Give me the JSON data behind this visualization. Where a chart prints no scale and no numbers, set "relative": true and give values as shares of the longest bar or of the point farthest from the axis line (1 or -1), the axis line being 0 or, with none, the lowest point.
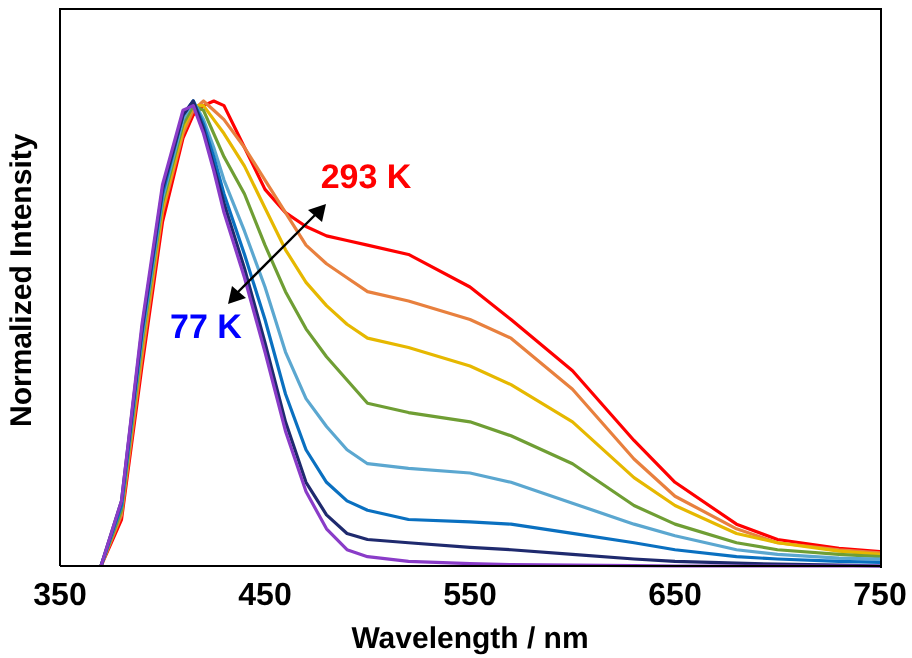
{
  "chart_data": {
    "type": "line",
    "relative": true,
    "xlabel": "Wavelength / nm",
    "ylabel": "Normalized Intensity",
    "xlim": [
      350,
      750
    ],
    "xticks": [
      350,
      450,
      550,
      650,
      750
    ],
    "marker": "none",
    "line_style": "solid",
    "annotations": [
      "293 K",
      "77 K"
    ],
    "x": [
      370,
      380,
      390,
      400,
      410,
      415,
      420,
      425,
      430,
      440,
      450,
      460,
      470,
      480,
      490,
      500,
      520,
      550,
      570,
      600,
      630,
      650,
      680,
      700,
      730,
      750
    ],
    "series": [
      {
        "color": "#ff0000",
        "values": [
          0,
          0.1,
          0.43,
          0.74,
          0.92,
          0.97,
          0.99,
          1,
          0.99,
          0.9,
          0.81,
          0.76,
          0.73,
          0.71,
          0.7,
          0.69,
          0.67,
          0.6,
          0.53,
          0.42,
          0.27,
          0.18,
          0.09,
          0.057,
          0.038,
          0.031
        ]
      },
      {
        "color": "#e8803e",
        "values": [
          0,
          0.11,
          0.45,
          0.76,
          0.93,
          0.98,
          1,
          0.98,
          0.96,
          0.9,
          0.83,
          0.76,
          0.69,
          0.65,
          0.62,
          0.59,
          0.57,
          0.53,
          0.49,
          0.38,
          0.23,
          0.15,
          0.08,
          0.05,
          0.035,
          0.028
        ]
      },
      {
        "color": "#e6b800",
        "values": [
          0,
          0.12,
          0.47,
          0.77,
          0.94,
          0.99,
          0.99,
          0.96,
          0.93,
          0.86,
          0.77,
          0.68,
          0.61,
          0.56,
          0.52,
          0.49,
          0.47,
          0.43,
          0.39,
          0.31,
          0.19,
          0.13,
          0.07,
          0.05,
          0.032,
          0.025
        ]
      },
      {
        "color": "#6f9e34",
        "values": [
          0,
          0.12,
          0.48,
          0.78,
          0.95,
          0.99,
          0.98,
          0.93,
          0.88,
          0.8,
          0.69,
          0.59,
          0.51,
          0.45,
          0.4,
          0.35,
          0.33,
          0.31,
          0.28,
          0.22,
          0.13,
          0.09,
          0.05,
          0.035,
          0.025,
          0.02
        ]
      },
      {
        "color": "#5ba7d0",
        "values": [
          0,
          0.13,
          0.49,
          0.79,
          0.96,
          1,
          0.96,
          0.9,
          0.83,
          0.72,
          0.6,
          0.46,
          0.36,
          0.3,
          0.25,
          0.22,
          0.21,
          0.2,
          0.18,
          0.135,
          0.09,
          0.065,
          0.035,
          0.025,
          0.017,
          0.015
        ]
      },
      {
        "color": "#0a70c0",
        "values": [
          0,
          0.13,
          0.5,
          0.8,
          0.97,
          1,
          0.95,
          0.88,
          0.8,
          0.67,
          0.53,
          0.37,
          0.25,
          0.18,
          0.14,
          0.12,
          0.1,
          0.095,
          0.09,
          0.07,
          0.05,
          0.035,
          0.02,
          0.015,
          0.01,
          0.008
        ]
      },
      {
        "color": "#1f2a6e",
        "values": [
          0,
          0.14,
          0.51,
          0.81,
          0.97,
          1,
          0.94,
          0.86,
          0.78,
          0.64,
          0.48,
          0.31,
          0.18,
          0.11,
          0.07,
          0.057,
          0.05,
          0.04,
          0.035,
          0.025,
          0.015,
          0.01,
          0.006,
          0.004,
          0.002,
          0
        ]
      },
      {
        "color": "#8a3cc8",
        "values": [
          0,
          0.14,
          0.52,
          0.82,
          0.98,
          0.99,
          0.93,
          0.85,
          0.76,
          0.62,
          0.46,
          0.29,
          0.16,
          0.08,
          0.035,
          0.02,
          0.01,
          0.005,
          0.003,
          0.002,
          0.001,
          0,
          0,
          0,
          0,
          0
        ]
      }
    ]
  }
}
